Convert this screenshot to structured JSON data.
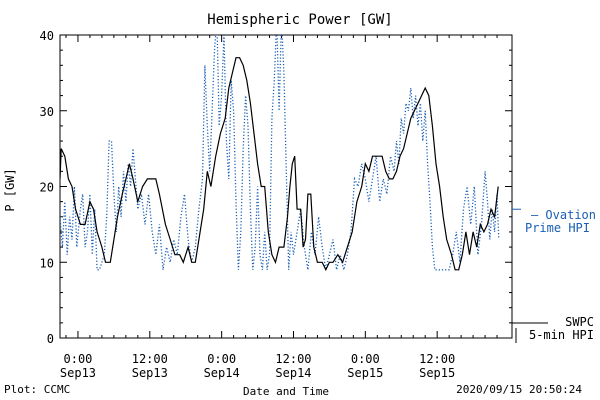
{
  "chart_data": {
    "type": "line",
    "title": "Hemispheric Power [GW]",
    "ylabel": "P [GW]",
    "xlabel": "Date and Time",
    "ylim": [
      0,
      40
    ],
    "yticks": [
      0,
      10,
      20,
      30,
      40
    ],
    "xlim": [
      -3,
      72.5
    ],
    "x_unit": "hours since 2020-09-13 00:00",
    "xticks": [
      {
        "x": 0,
        "l1": "0:00",
        "l2": "Sep13"
      },
      {
        "x": 12,
        "l1": "12:00",
        "l2": "Sep13"
      },
      {
        "x": 24,
        "l1": "0:00",
        "l2": "Sep14"
      },
      {
        "x": 36,
        "l1": "12:00",
        "l2": "Sep14"
      },
      {
        "x": 48,
        "l1": "0:00",
        "l2": "Sep15"
      },
      {
        "x": 60,
        "l1": "12:00",
        "l2": "Sep15"
      }
    ],
    "series": [
      {
        "name": "SWPC 5-min HPI",
        "color": "#000000",
        "style": "solid",
        "points": [
          [
            -3,
            21
          ],
          [
            -2.8,
            25
          ],
          [
            -2.2,
            24
          ],
          [
            -1.6,
            21
          ],
          [
            -1,
            20
          ],
          [
            -0.4,
            17
          ],
          [
            0.4,
            15
          ],
          [
            1.2,
            15
          ],
          [
            2,
            18
          ],
          [
            2.6,
            17
          ],
          [
            3.2,
            14
          ],
          [
            4,
            12
          ],
          [
            4.6,
            10
          ],
          [
            5.4,
            10
          ],
          [
            6,
            13
          ],
          [
            6.6,
            16
          ],
          [
            7.4,
            19
          ],
          [
            8,
            21
          ],
          [
            8.6,
            23
          ],
          [
            9.2,
            21
          ],
          [
            10,
            18
          ],
          [
            10.8,
            20
          ],
          [
            11.6,
            21
          ],
          [
            12.4,
            21
          ],
          [
            13,
            21
          ],
          [
            13.6,
            19
          ],
          [
            14.6,
            15
          ],
          [
            15.4,
            13
          ],
          [
            16.2,
            11
          ],
          [
            17,
            11
          ],
          [
            17.6,
            10
          ],
          [
            18.4,
            12
          ],
          [
            19,
            10
          ],
          [
            19.6,
            10
          ],
          [
            20.2,
            13
          ],
          [
            21,
            17
          ],
          [
            21.6,
            22
          ],
          [
            22.2,
            20
          ],
          [
            23,
            24
          ],
          [
            23.8,
            27
          ],
          [
            24.6,
            29
          ],
          [
            25.2,
            33
          ],
          [
            25.8,
            35
          ],
          [
            26.4,
            37
          ],
          [
            27,
            37
          ],
          [
            27.6,
            36
          ],
          [
            28.2,
            34
          ],
          [
            28.8,
            31
          ],
          [
            29.4,
            27
          ],
          [
            30,
            23
          ],
          [
            30.6,
            20
          ],
          [
            31.2,
            20
          ],
          [
            31.8,
            14
          ],
          [
            32.4,
            11
          ],
          [
            33,
            10
          ],
          [
            33.6,
            12
          ],
          [
            34.4,
            12
          ],
          [
            35,
            16
          ],
          [
            35.4,
            20
          ],
          [
            35.8,
            23
          ],
          [
            36.2,
            24
          ],
          [
            36.6,
            17
          ],
          [
            37.2,
            17
          ],
          [
            37.6,
            12
          ],
          [
            38,
            13
          ],
          [
            38.4,
            19
          ],
          [
            38.9,
            19
          ],
          [
            39.4,
            12
          ],
          [
            40,
            10
          ],
          [
            40.8,
            10
          ],
          [
            41.4,
            9
          ],
          [
            42,
            10
          ],
          [
            42.6,
            10
          ],
          [
            43.4,
            11
          ],
          [
            44.2,
            10
          ],
          [
            45,
            12
          ],
          [
            45.8,
            14
          ],
          [
            46.6,
            18
          ],
          [
            47.4,
            20
          ],
          [
            48,
            23
          ],
          [
            48.6,
            22
          ],
          [
            49.2,
            24
          ],
          [
            50,
            24
          ],
          [
            50.8,
            24
          ],
          [
            51.4,
            22
          ],
          [
            52,
            21
          ],
          [
            52.6,
            21
          ],
          [
            53.2,
            22
          ],
          [
            53.8,
            24
          ],
          [
            54.4,
            25
          ],
          [
            55,
            27
          ],
          [
            55.6,
            29
          ],
          [
            56.2,
            30
          ],
          [
            56.8,
            31
          ],
          [
            57.4,
            32
          ],
          [
            58,
            33
          ],
          [
            58.6,
            32
          ],
          [
            59.2,
            28
          ],
          [
            59.8,
            23
          ],
          [
            60.4,
            20
          ],
          [
            61,
            16
          ],
          [
            61.6,
            13
          ],
          [
            62.4,
            11
          ],
          [
            63,
            9
          ],
          [
            63.6,
            9
          ],
          [
            64.2,
            11
          ],
          [
            64.8,
            14
          ],
          [
            65.4,
            11
          ],
          [
            66,
            14
          ],
          [
            66.6,
            12
          ],
          [
            67.2,
            15
          ],
          [
            67.8,
            14
          ],
          [
            68.4,
            15
          ],
          [
            69,
            17
          ],
          [
            69.6,
            16
          ],
          [
            70.2,
            20
          ]
        ]
      },
      {
        "name": "Ovation Prime HPI",
        "color": "#1a5fb4",
        "style": "dotted",
        "points": [
          [
            -3,
            16
          ],
          [
            -2.6,
            12
          ],
          [
            -2.2,
            18
          ],
          [
            -1.8,
            11
          ],
          [
            -1.4,
            16
          ],
          [
            -1,
            13
          ],
          [
            -0.6,
            20
          ],
          [
            -0.2,
            12
          ],
          [
            0.4,
            17
          ],
          [
            0.8,
            19
          ],
          [
            1.2,
            12
          ],
          [
            1.6,
            14
          ],
          [
            2,
            19
          ],
          [
            2.4,
            11
          ],
          [
            2.8,
            17
          ],
          [
            3.2,
            9
          ],
          [
            3.6,
            9
          ],
          [
            4.4,
            11
          ],
          [
            4.8,
            16
          ],
          [
            5.2,
            26
          ],
          [
            5.6,
            26
          ],
          [
            6,
            19
          ],
          [
            6.4,
            14
          ],
          [
            6.8,
            20
          ],
          [
            7.2,
            16
          ],
          [
            7.6,
            22
          ],
          [
            8,
            18
          ],
          [
            8.4,
            23
          ],
          [
            8.8,
            20
          ],
          [
            9.2,
            25
          ],
          [
            9.6,
            21
          ],
          [
            10,
            17
          ],
          [
            10.6,
            19
          ],
          [
            11.2,
            15
          ],
          [
            11.8,
            19
          ],
          [
            12.4,
            14
          ],
          [
            13,
            11
          ],
          [
            13.6,
            15
          ],
          [
            14.2,
            9
          ],
          [
            14.8,
            12
          ],
          [
            15.4,
            10
          ],
          [
            16,
            13
          ],
          [
            16.6,
            11
          ],
          [
            17.2,
            16
          ],
          [
            17.8,
            19
          ],
          [
            18.4,
            13
          ],
          [
            19,
            10
          ],
          [
            19.6,
            12
          ],
          [
            20.2,
            17
          ],
          [
            20.8,
            21
          ],
          [
            21.2,
            36
          ],
          [
            21.6,
            28
          ],
          [
            22,
            22
          ],
          [
            22.4,
            30
          ],
          [
            22.8,
            38
          ],
          [
            23.2,
            42
          ],
          [
            23.6,
            28
          ],
          [
            24,
            32
          ],
          [
            24.4,
            40
          ],
          [
            24.8,
            26
          ],
          [
            25.2,
            21
          ],
          [
            25.6,
            34
          ],
          [
            26,
            30
          ],
          [
            26.4,
            18
          ],
          [
            26.8,
            9
          ],
          [
            27.2,
            14
          ],
          [
            27.6,
            25
          ],
          [
            28,
            32
          ],
          [
            28.4,
            28
          ],
          [
            28.8,
            17
          ],
          [
            29.2,
            9
          ],
          [
            29.6,
            12
          ],
          [
            30,
            20
          ],
          [
            30.4,
            11
          ],
          [
            30.8,
            9
          ],
          [
            31.2,
            14
          ],
          [
            31.6,
            9
          ],
          [
            32,
            11
          ],
          [
            32.4,
            29
          ],
          [
            32.8,
            34
          ],
          [
            33.2,
            42
          ],
          [
            33.6,
            30
          ],
          [
            34,
            42
          ],
          [
            34.4,
            35
          ],
          [
            34.8,
            22
          ],
          [
            35.2,
            9
          ],
          [
            35.6,
            14
          ],
          [
            36,
            11
          ],
          [
            36.6,
            14
          ],
          [
            37.2,
            17
          ],
          [
            37.8,
            12
          ],
          [
            38.4,
            9
          ],
          [
            39,
            14
          ],
          [
            39.6,
            11
          ],
          [
            40.2,
            16
          ],
          [
            40.8,
            12
          ],
          [
            41.4,
            9
          ],
          [
            42,
            11
          ],
          [
            42.6,
            13
          ],
          [
            43.2,
            9
          ],
          [
            43.8,
            11
          ],
          [
            44.4,
            9
          ],
          [
            45,
            11
          ],
          [
            45.6,
            14
          ],
          [
            46.2,
            21
          ],
          [
            46.8,
            20
          ],
          [
            47.4,
            23
          ],
          [
            48,
            21
          ],
          [
            48.6,
            18
          ],
          [
            49.2,
            21
          ],
          [
            49.8,
            24
          ],
          [
            50.4,
            18
          ],
          [
            51,
            21
          ],
          [
            51.6,
            19
          ],
          [
            52.2,
            24
          ],
          [
            52.8,
            22
          ],
          [
            53.2,
            26
          ],
          [
            53.6,
            23
          ],
          [
            54,
            29
          ],
          [
            54.4,
            27
          ],
          [
            54.8,
            31
          ],
          [
            55.2,
            30
          ],
          [
            55.6,
            33
          ],
          [
            56,
            29
          ],
          [
            56.4,
            32
          ],
          [
            56.8,
            28
          ],
          [
            57.2,
            31
          ],
          [
            57.6,
            26
          ],
          [
            58,
            30
          ],
          [
            58.4,
            23
          ],
          [
            58.8,
            18
          ],
          [
            59.2,
            12
          ],
          [
            59.6,
            9
          ],
          [
            60.4,
            9
          ],
          [
            61.2,
            9
          ],
          [
            62,
            9
          ],
          [
            62.6,
            11
          ],
          [
            63.2,
            14
          ],
          [
            63.8,
            10
          ],
          [
            64.4,
            17
          ],
          [
            65,
            20
          ],
          [
            65.6,
            15
          ],
          [
            66.2,
            20
          ],
          [
            66.8,
            11
          ],
          [
            67.4,
            15
          ],
          [
            68,
            22
          ],
          [
            68.4,
            18
          ],
          [
            68.8,
            13
          ],
          [
            69.2,
            17
          ],
          [
            69.6,
            14
          ],
          [
            70,
            19
          ],
          [
            70.3,
            13
          ]
        ]
      }
    ],
    "legend": [
      {
        "series": 0,
        "line1": "SWPC",
        "line2": "5-min HPI",
        "color": "#000000"
      },
      {
        "series": 1,
        "line1": "– Ovation",
        "line2": "Prime HPI",
        "color": "#1a5fb4"
      }
    ],
    "legend_placement": "right"
  },
  "footer": {
    "left": "Plot: CCMC",
    "right": "2020/09/15 20:50:24"
  }
}
